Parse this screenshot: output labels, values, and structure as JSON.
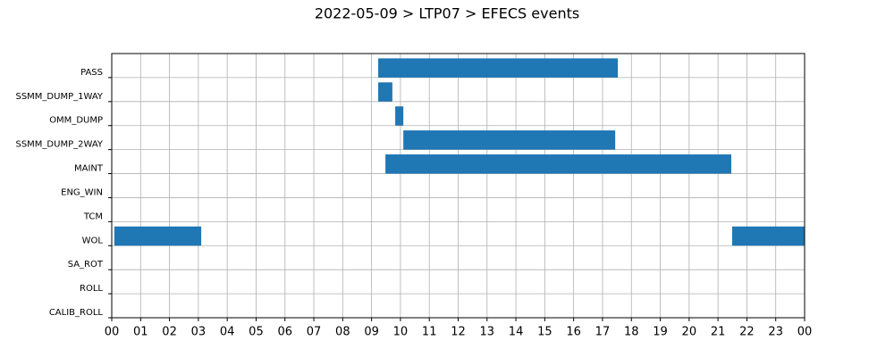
{
  "chart_data": {
    "type": "gantt",
    "title": "2022-05-09 > LTP07 > EFECS events",
    "color": "#1f77b4",
    "grid": true,
    "xlim": [
      0,
      24
    ],
    "xticks": [
      {
        "value": 0,
        "label": "00"
      },
      {
        "value": 1,
        "label": "01"
      },
      {
        "value": 2,
        "label": "02"
      },
      {
        "value": 3,
        "label": "03"
      },
      {
        "value": 4,
        "label": "04"
      },
      {
        "value": 5,
        "label": "05"
      },
      {
        "value": 6,
        "label": "06"
      },
      {
        "value": 7,
        "label": "07"
      },
      {
        "value": 8,
        "label": "08"
      },
      {
        "value": 9,
        "label": "09"
      },
      10,
      11,
      12,
      13,
      14,
      15,
      16,
      17,
      18,
      19,
      20,
      21,
      22,
      23,
      {
        "value": 24,
        "label": "00"
      }
    ],
    "series": [
      {
        "name": "PASS",
        "intervals": [
          [
            9.23,
            17.53
          ]
        ]
      },
      {
        "name": "SSMM_DUMP_1WAY",
        "intervals": [
          [
            9.23,
            9.72
          ]
        ]
      },
      {
        "name": "OMM_DUMP",
        "intervals": [
          [
            9.82,
            10.1
          ]
        ]
      },
      {
        "name": "SSMM_DUMP_2WAY",
        "intervals": [
          [
            10.1,
            17.44
          ]
        ]
      },
      {
        "name": "MAINT",
        "intervals": [
          [
            9.48,
            21.46
          ]
        ]
      },
      {
        "name": "ENG_WIN",
        "intervals": []
      },
      {
        "name": "TCM",
        "intervals": []
      },
      {
        "name": "WOL",
        "intervals": [
          [
            0.09,
            3.1
          ],
          [
            21.49,
            24
          ]
        ]
      },
      {
        "name": "SA_ROT",
        "intervals": []
      },
      {
        "name": "ROLL",
        "intervals": []
      },
      {
        "name": "CALIB_ROLL",
        "intervals": []
      }
    ]
  }
}
